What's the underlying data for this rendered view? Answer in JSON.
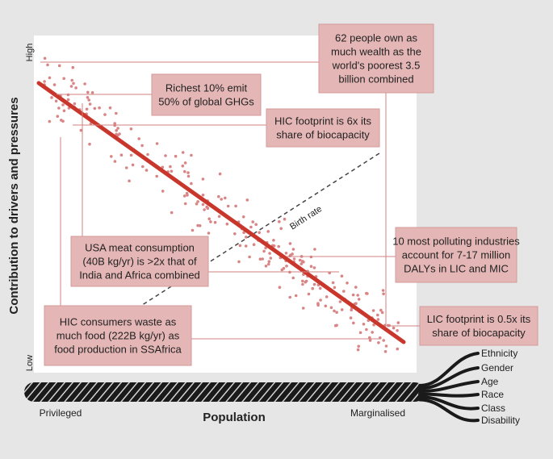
{
  "y_axis": {
    "label": "Contribution to drivers and pressures",
    "high": "High",
    "low": "Low"
  },
  "x_axis": {
    "label": "Population",
    "left": "Privileged",
    "right": "Marginalised"
  },
  "trend_label": "Birth rate",
  "callouts": [
    {
      "lines": [
        "62 people own as",
        "much wealth as the",
        "world's poorest 3.5",
        "billion combined"
      ]
    },
    {
      "lines": [
        "Richest 10% emit",
        "50% of global GHGs"
      ]
    },
    {
      "lines": [
        "HIC footprint is 6x its",
        "share of biocapacity"
      ]
    },
    {
      "lines": [
        "USA meat consumption",
        "(40B kg/yr) is >2x that of",
        "India and Africa combined"
      ]
    },
    {
      "lines": [
        "10 most polluting industries",
        "account for 7-17 million",
        "DALYs in LIC and MIC"
      ]
    },
    {
      "lines": [
        "HIC consumers waste as",
        "much food (222B kg/yr) as",
        "food production in SSAfrica"
      ]
    },
    {
      "lines": [
        "LIC footprint is 0.5x its",
        "share of biocapacity"
      ]
    }
  ],
  "strands": [
    "Ethnicity",
    "Gender",
    "Age",
    "Race",
    "Class",
    "Disability"
  ]
}
